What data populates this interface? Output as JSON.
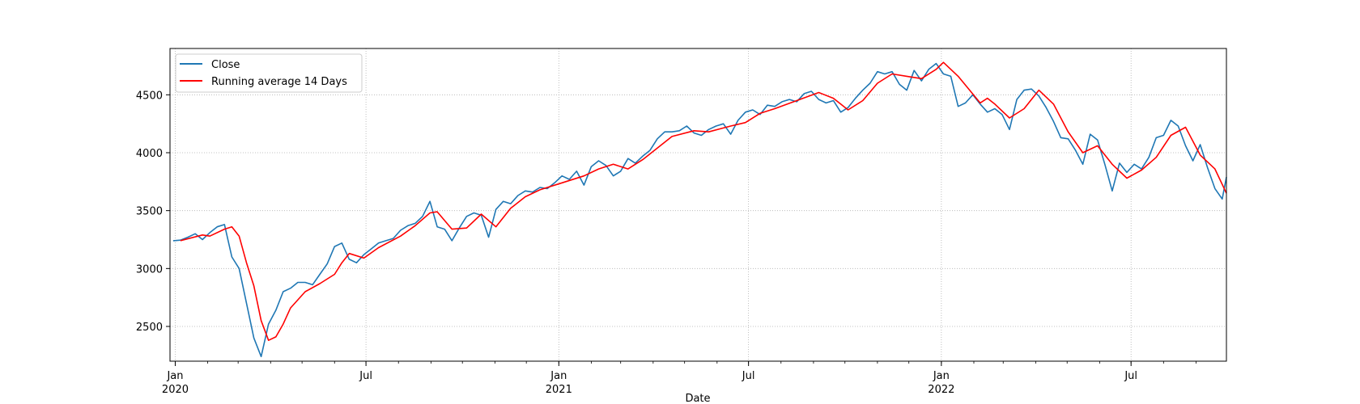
{
  "chart_data": {
    "type": "line",
    "title": "",
    "xlabel": "Date",
    "ylabel": "",
    "x_axis": "date",
    "xlim": [
      "2019-12-27",
      "2022-09-30"
    ],
    "ylim": [
      2200,
      4900
    ],
    "grid": true,
    "legend_position": "top-left",
    "yticks": [
      2500,
      3000,
      3500,
      4000,
      4500
    ],
    "ytick_labels": [
      "2500",
      "3000",
      "3500",
      "4000",
      "4500"
    ],
    "xticks": [
      {
        "date": "2020-01-01",
        "label": "Jan",
        "sublabel": "2020",
        "major": true
      },
      {
        "date": "2020-07-01",
        "label": "Jul",
        "sublabel": "",
        "major": false
      },
      {
        "date": "2021-01-01",
        "label": "Jan",
        "sublabel": "2021",
        "major": true
      },
      {
        "date": "2021-07-01",
        "label": "Jul",
        "sublabel": "",
        "major": false
      },
      {
        "date": "2022-01-01",
        "label": "Jan",
        "sublabel": "2022",
        "major": true
      },
      {
        "date": "2022-07-01",
        "label": "Jul",
        "sublabel": "",
        "major": false
      }
    ],
    "series": [
      {
        "name": "Close",
        "color": "#1f77b4",
        "points": [
          [
            "2019-12-30",
            3240
          ],
          [
            "2020-01-06",
            3245
          ],
          [
            "2020-01-13",
            3270
          ],
          [
            "2020-01-20",
            3300
          ],
          [
            "2020-01-27",
            3250
          ],
          [
            "2020-02-03",
            3310
          ],
          [
            "2020-02-10",
            3360
          ],
          [
            "2020-02-17",
            3380
          ],
          [
            "2020-02-24",
            3100
          ],
          [
            "2020-03-02",
            3000
          ],
          [
            "2020-03-09",
            2700
          ],
          [
            "2020-03-16",
            2400
          ],
          [
            "2020-03-23",
            2240
          ],
          [
            "2020-03-30",
            2520
          ],
          [
            "2020-04-06",
            2640
          ],
          [
            "2020-04-13",
            2800
          ],
          [
            "2020-04-20",
            2830
          ],
          [
            "2020-04-27",
            2880
          ],
          [
            "2020-05-04",
            2880
          ],
          [
            "2020-05-11",
            2860
          ],
          [
            "2020-05-18",
            2950
          ],
          [
            "2020-05-25",
            3040
          ],
          [
            "2020-06-01",
            3190
          ],
          [
            "2020-06-08",
            3220
          ],
          [
            "2020-06-15",
            3080
          ],
          [
            "2020-06-22",
            3050
          ],
          [
            "2020-06-29",
            3120
          ],
          [
            "2020-07-06",
            3170
          ],
          [
            "2020-07-13",
            3220
          ],
          [
            "2020-07-20",
            3240
          ],
          [
            "2020-07-27",
            3260
          ],
          [
            "2020-08-03",
            3330
          ],
          [
            "2020-08-10",
            3370
          ],
          [
            "2020-08-17",
            3390
          ],
          [
            "2020-08-24",
            3450
          ],
          [
            "2020-08-31",
            3580
          ],
          [
            "2020-09-07",
            3360
          ],
          [
            "2020-09-14",
            3340
          ],
          [
            "2020-09-21",
            3240
          ],
          [
            "2020-09-28",
            3350
          ],
          [
            "2020-10-05",
            3450
          ],
          [
            "2020-10-12",
            3480
          ],
          [
            "2020-10-19",
            3460
          ],
          [
            "2020-10-26",
            3270
          ],
          [
            "2020-11-02",
            3510
          ],
          [
            "2020-11-09",
            3580
          ],
          [
            "2020-11-16",
            3560
          ],
          [
            "2020-11-23",
            3630
          ],
          [
            "2020-11-30",
            3670
          ],
          [
            "2020-12-07",
            3660
          ],
          [
            "2020-12-14",
            3700
          ],
          [
            "2020-12-21",
            3690
          ],
          [
            "2020-12-28",
            3740
          ],
          [
            "2021-01-04",
            3800
          ],
          [
            "2021-01-11",
            3770
          ],
          [
            "2021-01-18",
            3840
          ],
          [
            "2021-01-25",
            3720
          ],
          [
            "2021-02-01",
            3880
          ],
          [
            "2021-02-08",
            3930
          ],
          [
            "2021-02-15",
            3890
          ],
          [
            "2021-02-22",
            3800
          ],
          [
            "2021-03-01",
            3840
          ],
          [
            "2021-03-08",
            3950
          ],
          [
            "2021-03-15",
            3910
          ],
          [
            "2021-03-22",
            3970
          ],
          [
            "2021-03-29",
            4020
          ],
          [
            "2021-04-05",
            4120
          ],
          [
            "2021-04-12",
            4180
          ],
          [
            "2021-04-19",
            4180
          ],
          [
            "2021-04-26",
            4190
          ],
          [
            "2021-05-03",
            4230
          ],
          [
            "2021-05-10",
            4170
          ],
          [
            "2021-05-17",
            4150
          ],
          [
            "2021-05-24",
            4200
          ],
          [
            "2021-05-31",
            4230
          ],
          [
            "2021-06-07",
            4250
          ],
          [
            "2021-06-14",
            4160
          ],
          [
            "2021-06-21",
            4280
          ],
          [
            "2021-06-28",
            4350
          ],
          [
            "2021-07-05",
            4370
          ],
          [
            "2021-07-12",
            4330
          ],
          [
            "2021-07-19",
            4410
          ],
          [
            "2021-07-26",
            4400
          ],
          [
            "2021-08-02",
            4440
          ],
          [
            "2021-08-09",
            4460
          ],
          [
            "2021-08-16",
            4440
          ],
          [
            "2021-08-23",
            4510
          ],
          [
            "2021-08-30",
            4530
          ],
          [
            "2021-09-06",
            4460
          ],
          [
            "2021-09-13",
            4430
          ],
          [
            "2021-09-20",
            4450
          ],
          [
            "2021-09-27",
            4350
          ],
          [
            "2021-10-04",
            4390
          ],
          [
            "2021-10-11",
            4470
          ],
          [
            "2021-10-18",
            4540
          ],
          [
            "2021-10-25",
            4600
          ],
          [
            "2021-11-01",
            4700
          ],
          [
            "2021-11-08",
            4680
          ],
          [
            "2021-11-15",
            4700
          ],
          [
            "2021-11-22",
            4590
          ],
          [
            "2021-11-29",
            4540
          ],
          [
            "2021-12-06",
            4710
          ],
          [
            "2021-12-13",
            4620
          ],
          [
            "2021-12-20",
            4720
          ],
          [
            "2021-12-27",
            4770
          ],
          [
            "2022-01-03",
            4680
          ],
          [
            "2022-01-10",
            4660
          ],
          [
            "2022-01-17",
            4400
          ],
          [
            "2022-01-24",
            4430
          ],
          [
            "2022-01-31",
            4500
          ],
          [
            "2022-02-07",
            4420
          ],
          [
            "2022-02-14",
            4350
          ],
          [
            "2022-02-21",
            4380
          ],
          [
            "2022-02-28",
            4330
          ],
          [
            "2022-03-07",
            4200
          ],
          [
            "2022-03-14",
            4460
          ],
          [
            "2022-03-21",
            4540
          ],
          [
            "2022-03-28",
            4550
          ],
          [
            "2022-04-04",
            4490
          ],
          [
            "2022-04-11",
            4390
          ],
          [
            "2022-04-18",
            4270
          ],
          [
            "2022-04-25",
            4130
          ],
          [
            "2022-05-02",
            4120
          ],
          [
            "2022-05-09",
            4020
          ],
          [
            "2022-05-16",
            3900
          ],
          [
            "2022-05-23",
            4160
          ],
          [
            "2022-05-30",
            4110
          ],
          [
            "2022-06-06",
            3900
          ],
          [
            "2022-06-13",
            3670
          ],
          [
            "2022-06-20",
            3910
          ],
          [
            "2022-06-27",
            3830
          ],
          [
            "2022-07-04",
            3900
          ],
          [
            "2022-07-11",
            3860
          ],
          [
            "2022-07-18",
            3960
          ],
          [
            "2022-07-25",
            4130
          ],
          [
            "2022-08-01",
            4150
          ],
          [
            "2022-08-08",
            4280
          ],
          [
            "2022-08-15",
            4230
          ],
          [
            "2022-08-22",
            4060
          ],
          [
            "2022-08-29",
            3930
          ],
          [
            "2022-09-05",
            4070
          ],
          [
            "2022-09-12",
            3870
          ],
          [
            "2022-09-19",
            3690
          ],
          [
            "2022-09-26",
            3600
          ],
          [
            "2022-09-30",
            3790
          ]
        ]
      },
      {
        "name": "Running average 14 Days",
        "color": "#ff0000",
        "points": [
          [
            "2020-01-06",
            3240
          ],
          [
            "2020-01-27",
            3290
          ],
          [
            "2020-02-03",
            3280
          ],
          [
            "2020-02-17",
            3340
          ],
          [
            "2020-02-24",
            3360
          ],
          [
            "2020-03-02",
            3280
          ],
          [
            "2020-03-09",
            3050
          ],
          [
            "2020-03-16",
            2850
          ],
          [
            "2020-03-23",
            2550
          ],
          [
            "2020-03-30",
            2380
          ],
          [
            "2020-04-06",
            2410
          ],
          [
            "2020-04-13",
            2520
          ],
          [
            "2020-04-20",
            2660
          ],
          [
            "2020-05-04",
            2800
          ],
          [
            "2020-05-18",
            2870
          ],
          [
            "2020-06-01",
            2950
          ],
          [
            "2020-06-08",
            3050
          ],
          [
            "2020-06-15",
            3130
          ],
          [
            "2020-06-29",
            3090
          ],
          [
            "2020-07-13",
            3180
          ],
          [
            "2020-08-03",
            3280
          ],
          [
            "2020-08-17",
            3370
          ],
          [
            "2020-08-31",
            3480
          ],
          [
            "2020-09-07",
            3490
          ],
          [
            "2020-09-21",
            3340
          ],
          [
            "2020-10-05",
            3350
          ],
          [
            "2020-10-19",
            3470
          ],
          [
            "2020-11-02",
            3360
          ],
          [
            "2020-11-16",
            3520
          ],
          [
            "2020-11-30",
            3620
          ],
          [
            "2020-12-14",
            3680
          ],
          [
            "2021-01-04",
            3740
          ],
          [
            "2021-01-25",
            3800
          ],
          [
            "2021-02-08",
            3860
          ],
          [
            "2021-02-22",
            3900
          ],
          [
            "2021-03-08",
            3860
          ],
          [
            "2021-03-22",
            3940
          ],
          [
            "2021-04-05",
            4040
          ],
          [
            "2021-04-19",
            4140
          ],
          [
            "2021-05-10",
            4190
          ],
          [
            "2021-05-24",
            4180
          ],
          [
            "2021-06-14",
            4230
          ],
          [
            "2021-06-28",
            4260
          ],
          [
            "2021-07-12",
            4340
          ],
          [
            "2021-07-26",
            4380
          ],
          [
            "2021-08-16",
            4450
          ],
          [
            "2021-09-06",
            4520
          ],
          [
            "2021-09-20",
            4470
          ],
          [
            "2021-10-04",
            4370
          ],
          [
            "2021-10-18",
            4450
          ],
          [
            "2021-11-01",
            4600
          ],
          [
            "2021-11-15",
            4680
          ],
          [
            "2021-11-29",
            4660
          ],
          [
            "2021-12-13",
            4640
          ],
          [
            "2021-12-27",
            4720
          ],
          [
            "2022-01-03",
            4780
          ],
          [
            "2022-01-17",
            4660
          ],
          [
            "2022-02-07",
            4430
          ],
          [
            "2022-02-14",
            4470
          ],
          [
            "2022-02-21",
            4420
          ],
          [
            "2022-03-07",
            4300
          ],
          [
            "2022-03-21",
            4380
          ],
          [
            "2022-04-04",
            4540
          ],
          [
            "2022-04-18",
            4420
          ],
          [
            "2022-05-02",
            4180
          ],
          [
            "2022-05-16",
            4000
          ],
          [
            "2022-05-30",
            4060
          ],
          [
            "2022-06-13",
            3900
          ],
          [
            "2022-06-27",
            3780
          ],
          [
            "2022-07-11",
            3850
          ],
          [
            "2022-07-25",
            3960
          ],
          [
            "2022-08-08",
            4150
          ],
          [
            "2022-08-22",
            4220
          ],
          [
            "2022-09-05",
            3980
          ],
          [
            "2022-09-19",
            3860
          ],
          [
            "2022-09-30",
            3650
          ]
        ]
      }
    ]
  }
}
